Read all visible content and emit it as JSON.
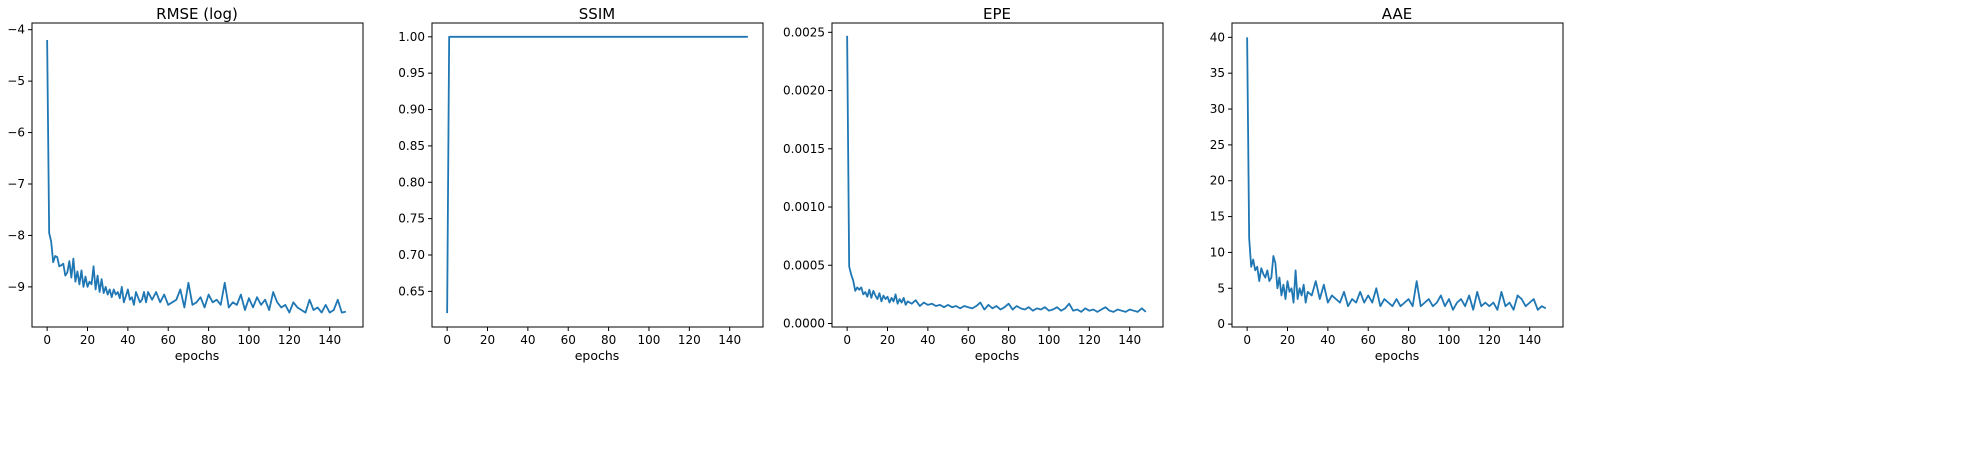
{
  "chart_data": [
    {
      "type": "line",
      "title": "RMSE (log)",
      "xlabel": "epochs",
      "ylabel": "",
      "xlim": [
        -7.5,
        156.5
      ],
      "ylim": [
        -9.78,
        -3.87
      ],
      "xticks": [
        0,
        20,
        40,
        60,
        80,
        100,
        120,
        140
      ],
      "xtick_labels": [
        "0",
        "20",
        "40",
        "60",
        "80",
        "100",
        "120",
        "140"
      ],
      "yticks": [
        -9,
        -8,
        -7,
        -6,
        -5,
        -4
      ],
      "ytick_labels": [
        "−9",
        "−8",
        "−7",
        "−6",
        "−5",
        "−4"
      ],
      "color": "#1f77b4",
      "x": [
        0,
        1,
        2,
        3,
        4,
        5,
        6,
        7,
        8,
        9,
        10,
        11,
        12,
        13,
        14,
        15,
        16,
        17,
        18,
        19,
        20,
        21,
        22,
        23,
        24,
        25,
        26,
        27,
        28,
        29,
        30,
        31,
        32,
        33,
        34,
        35,
        36,
        37,
        38,
        39,
        40,
        41,
        42,
        43,
        44,
        45,
        46,
        47,
        48,
        49,
        50,
        52,
        54,
        56,
        58,
        60,
        62,
        64,
        66,
        68,
        70,
        72,
        74,
        76,
        78,
        80,
        82,
        84,
        86,
        88,
        90,
        92,
        94,
        96,
        98,
        100,
        102,
        104,
        106,
        108,
        110,
        112,
        114,
        116,
        118,
        120,
        122,
        124,
        126,
        128,
        130,
        132,
        134,
        136,
        138,
        140,
        142,
        144,
        146,
        148
      ],
      "values": [
        -4.2,
        -7.95,
        -8.12,
        -8.52,
        -8.4,
        -8.42,
        -8.6,
        -8.58,
        -8.55,
        -8.78,
        -8.72,
        -8.5,
        -8.82,
        -8.45,
        -8.9,
        -8.7,
        -8.95,
        -8.68,
        -9.0,
        -8.8,
        -9.0,
        -8.9,
        -8.95,
        -8.6,
        -9.05,
        -8.78,
        -9.1,
        -8.85,
        -9.12,
        -9.0,
        -9.15,
        -9.05,
        -9.2,
        -9.05,
        -9.15,
        -9.1,
        -9.22,
        -9.0,
        -9.3,
        -9.18,
        -9.05,
        -9.25,
        -9.2,
        -9.35,
        -9.1,
        -9.2,
        -9.3,
        -9.25,
        -9.1,
        -9.3,
        -9.1,
        -9.25,
        -9.1,
        -9.3,
        -9.15,
        -9.35,
        -9.3,
        -9.25,
        -9.05,
        -9.4,
        -8.92,
        -9.35,
        -9.3,
        -9.2,
        -9.4,
        -9.15,
        -9.3,
        -9.25,
        -9.35,
        -8.92,
        -9.4,
        -9.3,
        -9.35,
        -9.15,
        -9.45,
        -9.22,
        -9.4,
        -9.2,
        -9.35,
        -9.25,
        -9.45,
        -9.1,
        -9.3,
        -9.4,
        -9.35,
        -9.5,
        -9.3,
        -9.4,
        -9.45,
        -9.5,
        -9.25,
        -9.45,
        -9.4,
        -9.5,
        -9.35,
        -9.5,
        -9.45,
        -9.25,
        -9.5,
        -9.48
      ],
      "grid": false,
      "legend": "none"
    },
    {
      "type": "line",
      "title": "SSIM",
      "xlabel": "epochs",
      "ylabel": "",
      "xlim": [
        -7.5,
        156.5
      ],
      "ylim": [
        0.601,
        1.019
      ],
      "xticks": [
        0,
        20,
        40,
        60,
        80,
        100,
        120,
        140
      ],
      "xtick_labels": [
        "0",
        "20",
        "40",
        "60",
        "80",
        "100",
        "120",
        "140"
      ],
      "yticks": [
        0.65,
        0.7,
        0.75,
        0.8,
        0.85,
        0.9,
        0.95,
        1.0
      ],
      "ytick_labels": [
        "0.65",
        "0.70",
        "0.75",
        "0.80",
        "0.85",
        "0.90",
        "0.95",
        "1.00"
      ],
      "color": "#1f77b4",
      "x": [
        0,
        1,
        2,
        149
      ],
      "values": [
        0.62,
        1.0,
        1.0,
        1.0
      ],
      "grid": false,
      "legend": "none"
    },
    {
      "type": "line",
      "title": "EPE",
      "xlabel": "epochs",
      "ylabel": "",
      "xlim": [
        -7.5,
        156.5
      ],
      "ylim": [
        -3e-05,
        0.00258
      ],
      "xticks": [
        0,
        20,
        40,
        60,
        80,
        100,
        120,
        140
      ],
      "xtick_labels": [
        "0",
        "20",
        "40",
        "60",
        "80",
        "100",
        "120",
        "140"
      ],
      "yticks": [
        0,
        0.0005,
        0.001,
        0.0015,
        0.002,
        0.0025
      ],
      "ytick_labels": [
        "0.0000",
        "0.0005",
        "0.0010",
        "0.0015",
        "0.0020",
        "0.0025"
      ],
      "color": "#1f77b4",
      "x": [
        0,
        1,
        2,
        3,
        4,
        5,
        6,
        7,
        8,
        9,
        10,
        11,
        12,
        13,
        14,
        15,
        16,
        17,
        18,
        19,
        20,
        21,
        22,
        23,
        24,
        25,
        26,
        27,
        28,
        29,
        30,
        32,
        34,
        36,
        38,
        40,
        42,
        44,
        46,
        48,
        50,
        52,
        54,
        56,
        58,
        60,
        62,
        64,
        66,
        68,
        70,
        72,
        74,
        76,
        78,
        80,
        82,
        84,
        86,
        88,
        90,
        92,
        94,
        96,
        98,
        100,
        102,
        104,
        106,
        108,
        110,
        112,
        114,
        116,
        118,
        120,
        122,
        124,
        126,
        128,
        130,
        132,
        134,
        136,
        138,
        140,
        142,
        144,
        146,
        148
      ],
      "values": [
        0.00247,
        0.00049,
        0.00042,
        0.00037,
        0.00028,
        0.00031,
        0.00029,
        0.00031,
        0.00025,
        0.00027,
        0.00023,
        0.00029,
        0.00022,
        0.00028,
        0.00024,
        0.00021,
        0.00026,
        0.00019,
        0.00024,
        0.00021,
        0.00023,
        0.00018,
        0.00022,
        0.00019,
        0.00025,
        0.00017,
        0.00021,
        0.00018,
        0.00022,
        0.00016,
        0.00019,
        0.00017,
        0.0002,
        0.00015,
        0.00018,
        0.00016,
        0.00017,
        0.00015,
        0.00016,
        0.00014,
        0.00016,
        0.00014,
        0.00015,
        0.00013,
        0.00015,
        0.00014,
        0.00013,
        0.00015,
        0.00018,
        0.00012,
        0.00016,
        0.00013,
        0.00015,
        0.00012,
        0.00014,
        0.00017,
        0.00012,
        0.00015,
        0.00013,
        0.00012,
        0.00014,
        0.00011,
        0.00013,
        0.00012,
        0.00014,
        0.00011,
        0.00012,
        0.00014,
        0.00011,
        0.00013,
        0.00017,
        0.00011,
        0.00012,
        0.0001,
        0.00013,
        0.00011,
        0.00012,
        0.0001,
        0.00012,
        0.00014,
        0.00011,
        0.0001,
        0.00012,
        0.00011,
        0.0001,
        0.00012,
        0.00011,
        0.0001,
        0.00013,
        0.0001
      ],
      "grid": false,
      "legend": "none"
    },
    {
      "type": "line",
      "title": "AAE",
      "xlabel": "epochs",
      "ylabel": "",
      "xlim": [
        -7.5,
        156.5
      ],
      "ylim": [
        -0.4,
        42.0
      ],
      "xticks": [
        0,
        20,
        40,
        60,
        80,
        100,
        120,
        140
      ],
      "xtick_labels": [
        "0",
        "20",
        "40",
        "60",
        "80",
        "100",
        "120",
        "140"
      ],
      "yticks": [
        0,
        5,
        10,
        15,
        20,
        25,
        30,
        35,
        40
      ],
      "ytick_labels": [
        "0",
        "5",
        "10",
        "15",
        "20",
        "25",
        "30",
        "35",
        "40"
      ],
      "color": "#1f77b4",
      "x": [
        0,
        1,
        2,
        3,
        4,
        5,
        6,
        7,
        8,
        9,
        10,
        11,
        12,
        13,
        14,
        15,
        16,
        17,
        18,
        19,
        20,
        21,
        22,
        23,
        24,
        25,
        26,
        27,
        28,
        29,
        30,
        32,
        34,
        36,
        38,
        40,
        42,
        44,
        46,
        48,
        50,
        52,
        54,
        56,
        58,
        60,
        62,
        64,
        66,
        68,
        70,
        72,
        74,
        76,
        78,
        80,
        82,
        84,
        86,
        88,
        90,
        92,
        94,
        96,
        98,
        100,
        102,
        104,
        106,
        108,
        110,
        112,
        114,
        116,
        118,
        120,
        122,
        124,
        126,
        128,
        130,
        132,
        134,
        136,
        138,
        140,
        142,
        144,
        146,
        148
      ],
      "values": [
        40.0,
        12.0,
        8.0,
        9.0,
        7.5,
        8.0,
        6.0,
        7.8,
        7.0,
        6.5,
        7.5,
        6.0,
        6.5,
        9.5,
        8.5,
        5.0,
        6.5,
        4.0,
        5.5,
        3.5,
        6.0,
        4.5,
        5.0,
        3.0,
        7.5,
        3.5,
        5.0,
        4.0,
        5.5,
        3.0,
        4.5,
        4.0,
        6.0,
        3.5,
        5.5,
        3.0,
        4.0,
        3.5,
        3.0,
        4.5,
        2.5,
        3.5,
        3.0,
        4.5,
        3.0,
        4.0,
        3.0,
        5.0,
        2.5,
        3.5,
        3.0,
        2.5,
        3.5,
        2.5,
        3.0,
        3.5,
        2.5,
        6.0,
        2.5,
        3.0,
        3.5,
        2.5,
        3.0,
        4.0,
        2.5,
        3.5,
        2.0,
        3.0,
        3.5,
        2.5,
        4.0,
        2.0,
        4.5,
        2.5,
        3.0,
        2.5,
        3.0,
        2.0,
        4.5,
        2.5,
        3.0,
        2.0,
        4.0,
        3.5,
        2.5,
        3.0,
        3.5,
        2.0,
        2.5,
        2.2
      ],
      "grid": false,
      "legend": "none"
    }
  ]
}
